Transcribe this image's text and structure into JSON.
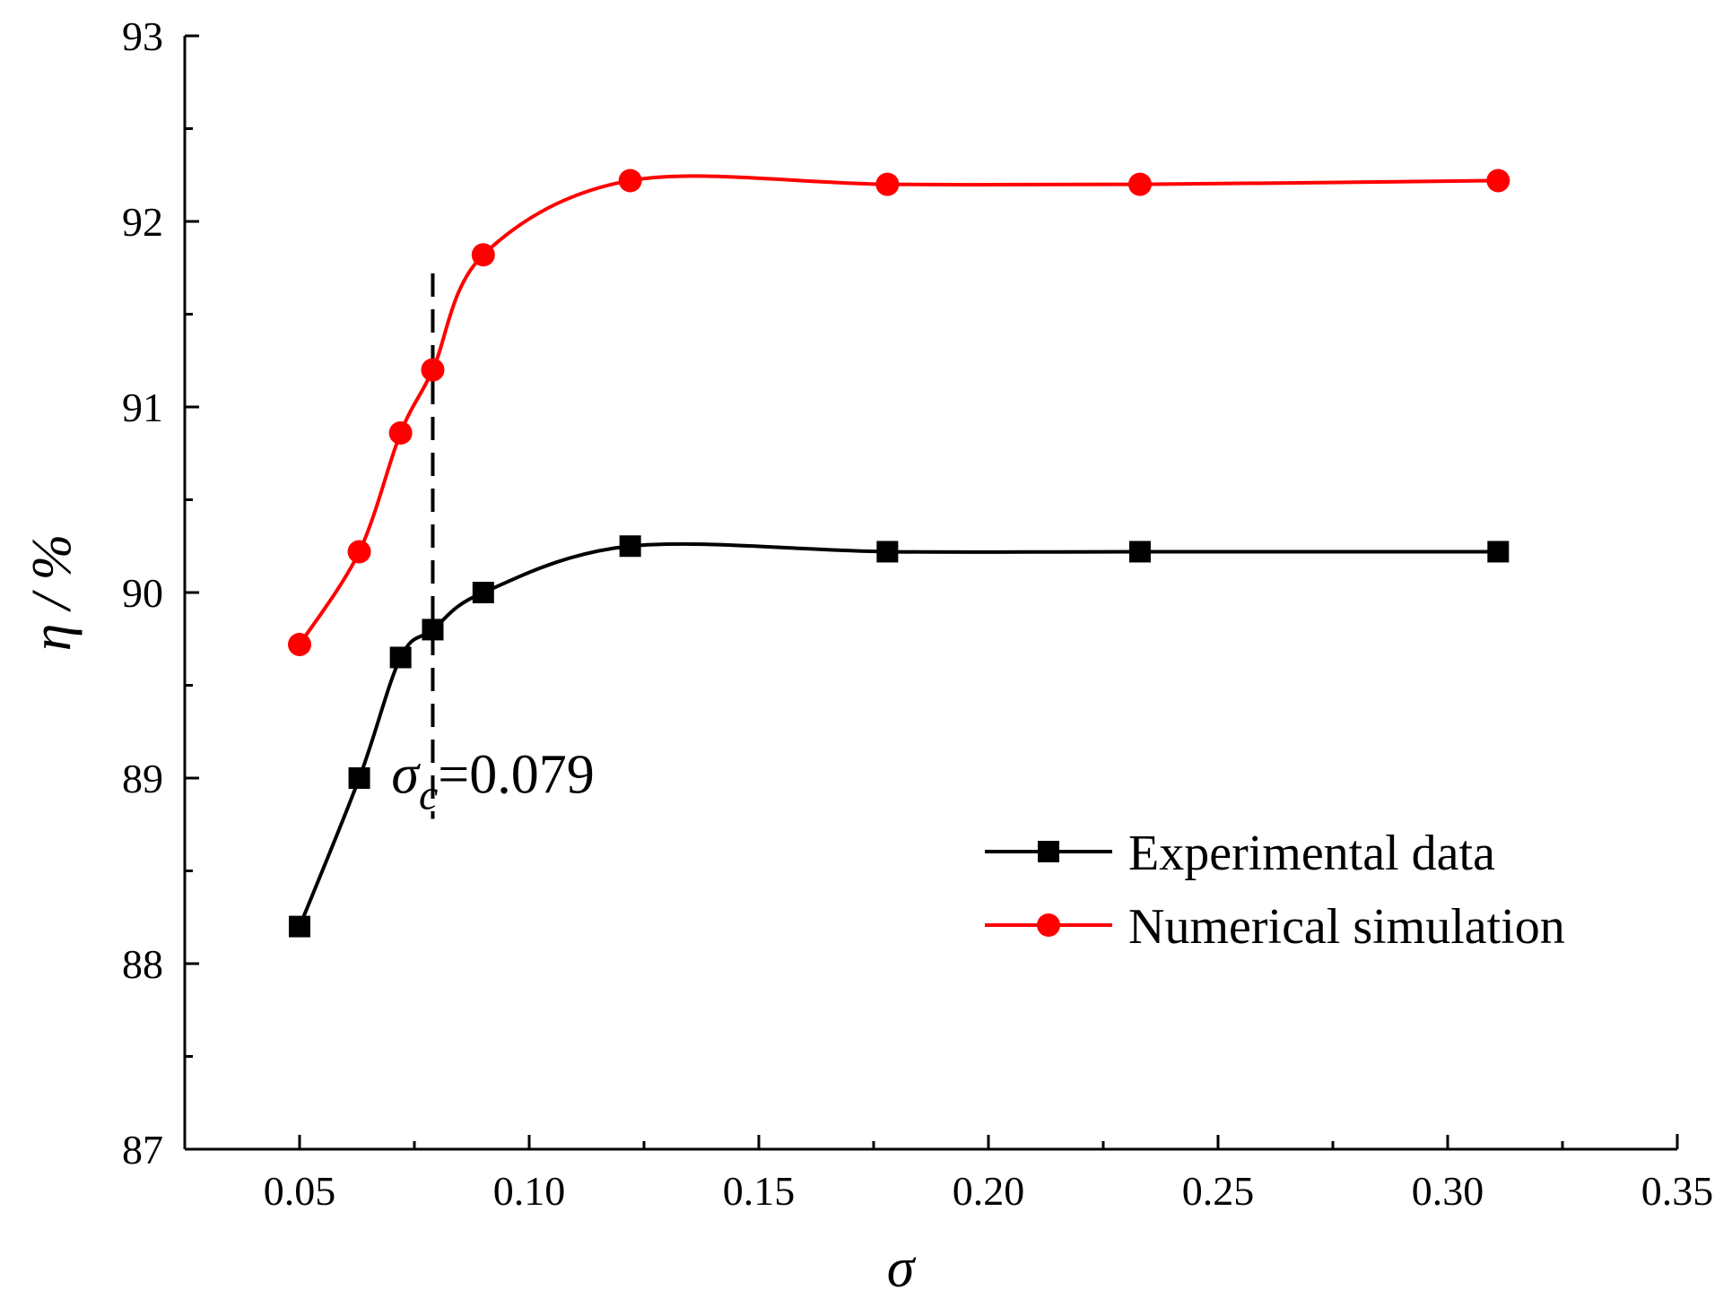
{
  "chart_data": {
    "type": "line",
    "xlabel": "σ",
    "ylabel": "η / %",
    "xlim": [
      0.025,
      0.35
    ],
    "ylim": [
      87,
      93
    ],
    "x_ticks": [
      0.05,
      0.1,
      0.15,
      0.2,
      0.25,
      0.3,
      0.35
    ],
    "x_tick_labels": [
      "0.05",
      "0.10",
      "0.15",
      "0.20",
      "0.25",
      "0.30",
      "0.35"
    ],
    "y_ticks": [
      87,
      88,
      89,
      90,
      91,
      92,
      93
    ],
    "y_tick_labels": [
      "87",
      "88",
      "89",
      "90",
      "91",
      "92",
      "93"
    ],
    "grid": false,
    "legend_position": "bottom-right",
    "series": [
      {
        "name": "Experimental data",
        "color": "#000000",
        "marker": "square",
        "x": [
          0.05,
          0.063,
          0.072,
          0.079,
          0.09,
          0.122,
          0.178,
          0.233,
          0.311
        ],
        "y": [
          88.2,
          89.0,
          89.65,
          89.8,
          90.0,
          90.25,
          90.22,
          90.22,
          90.22
        ]
      },
      {
        "name": "Numerical simulation",
        "color": "#ff0000",
        "marker": "circle",
        "x": [
          0.05,
          0.063,
          0.072,
          0.079,
          0.09,
          0.122,
          0.178,
          0.233,
          0.311
        ],
        "y": [
          89.72,
          90.22,
          90.86,
          91.2,
          91.82,
          92.22,
          92.2,
          92.2,
          92.22
        ]
      }
    ],
    "annotation": {
      "symbol": "σ",
      "subscript": "c",
      "value_text": "=0.079",
      "x": 0.079
    }
  }
}
